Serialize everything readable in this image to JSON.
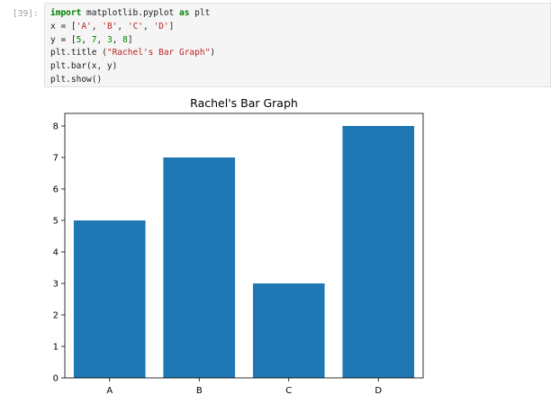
{
  "cell": {
    "prompt": "[39]:",
    "code": [
      [
        {
          "t": "import",
          "c": "kw"
        },
        {
          "t": " matplotlib.pyplot "
        },
        {
          "t": "as",
          "c": "kw"
        },
        {
          "t": " plt"
        }
      ],
      [
        {
          "t": "x = ["
        },
        {
          "t": "'A'",
          "c": "str"
        },
        {
          "t": ", "
        },
        {
          "t": "'B'",
          "c": "str"
        },
        {
          "t": ", "
        },
        {
          "t": "'C'",
          "c": "str"
        },
        {
          "t": ", "
        },
        {
          "t": "'D'",
          "c": "str"
        },
        {
          "t": "]"
        }
      ],
      [
        {
          "t": "y = ["
        },
        {
          "t": "5",
          "c": "num"
        },
        {
          "t": ", "
        },
        {
          "t": "7",
          "c": "num"
        },
        {
          "t": ", "
        },
        {
          "t": "3",
          "c": "num"
        },
        {
          "t": ", "
        },
        {
          "t": "8",
          "c": "num"
        },
        {
          "t": "]"
        }
      ],
      [
        {
          "t": "plt.title ("
        },
        {
          "t": "\"Rachel's Bar Graph\"",
          "c": "str"
        },
        {
          "t": ")"
        }
      ],
      [
        {
          "t": "plt.bar(x, y)"
        }
      ],
      [
        {
          "t": "plt.show()"
        }
      ]
    ]
  },
  "colors": {
    "bar": "#1f77b4",
    "axis": "#000000"
  },
  "chart_data": {
    "type": "bar",
    "title": "Rachel's Bar Graph",
    "categories": [
      "A",
      "B",
      "C",
      "D"
    ],
    "values": [
      5,
      7,
      3,
      8
    ],
    "xlabel": "",
    "ylabel": "",
    "ylim": [
      0,
      8.4
    ],
    "yticks": [
      0,
      1,
      2,
      3,
      4,
      5,
      6,
      7,
      8
    ],
    "grid": false
  }
}
